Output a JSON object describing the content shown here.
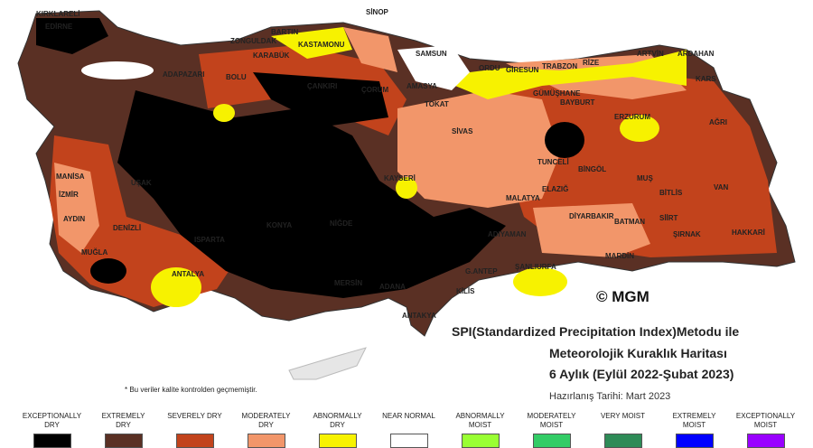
{
  "title_lines": [
    "SPI(Standardized Precipitation Index)Metodu ile",
    "Meteorolojik Kuraklık Haritası",
    "6 Aylık (Eylül 2022-Şubat 2023)"
  ],
  "prepared_date": "Hazırlanış Tarihi: Mart 2023",
  "note": "* Bu veriler kalite kontrolden geçmemiştir.",
  "credit": "© MGM",
  "legend": [
    {
      "label": "EXCEPTIONALLY DRY",
      "color": "#000000"
    },
    {
      "label": "EXTREMELY DRY",
      "color": "#5a3024"
    },
    {
      "label": "SEVERELY DRY",
      "color": "#c2431c"
    },
    {
      "label": "MODERATELY DRY",
      "color": "#f2966a"
    },
    {
      "label": "ABNORMALLY DRY",
      "color": "#f7f200"
    },
    {
      "label": "NEAR NORMAL",
      "color": "#ffffff"
    },
    {
      "label": "ABNORMALLY MOIST",
      "color": "#99ff33"
    },
    {
      "label": "MODERATELY MOIST",
      "color": "#33cc66"
    },
    {
      "label": "VERY MOIST",
      "color": "#2e8b57"
    },
    {
      "label": "EXTREMELY MOIST",
      "color": "#0000ff"
    },
    {
      "label": "EXCEPTIONALLY MOIST",
      "color": "#9900ff"
    }
  ],
  "cities": [
    "KIRKLARELİ",
    "EDİRNE",
    "SİNOP",
    "BARTIN",
    "ZONGULDAK",
    "KASTAMONU",
    "KARABÜK",
    "SAMSUN",
    "ORDU",
    "GİRESUN",
    "TRABZON",
    "RİZE",
    "ARTVİN",
    "ARDAHAN",
    "KARS",
    "ADAPAZARI",
    "BOLU",
    "ÇANKIRI",
    "ÇORUM",
    "AMASYA",
    "TOKAT",
    "GÜMÜŞHANE",
    "BAYBURT",
    "ERZURUM",
    "AĞRI",
    "SİVAS",
    "TUNCELİ",
    "BİNGÖL",
    "MUŞ",
    "VAN",
    "BİTLİS",
    "SİİRT",
    "ŞIRNAK",
    "HAKKARİ",
    "KAYSERİ",
    "ELAZIĞ",
    "MALATYA",
    "DİYARBAKIR",
    "BATMAN",
    "MARDİN",
    "MANİSA",
    "İZMİR",
    "AYDIN",
    "MUĞLA",
    "DENİZLİ",
    "UŞAK",
    "ISPARTA",
    "ANTALYA",
    "KONYA",
    "NİĞDE",
    "ADANA",
    "MERSİN",
    "ANTAKYA",
    "KİLİS",
    "G.ANTEP",
    "ŞANLIURFA",
    "ADIYAMAN"
  ]
}
